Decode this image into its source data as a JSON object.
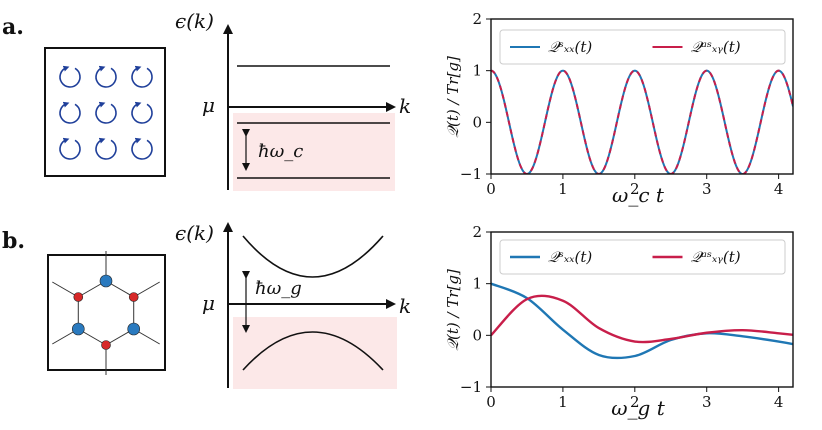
{
  "panels": [
    {
      "label": "a.",
      "band_axis": {
        "ylabel": "ϵ(k)",
        "xlabel": "k",
        "mu": "μ",
        "gap": "ħω_c"
      },
      "chart_data": {
        "type": "line",
        "ylabel": "𝒬(t) / Tr[g]",
        "xlabel": "ω_c t",
        "xlim": [
          0,
          4.2
        ],
        "ylim": [
          -1,
          2
        ],
        "xticks": [
          "0",
          "1",
          "2",
          "3",
          "4"
        ],
        "yticks": [
          "−1",
          "0",
          "1",
          "2"
        ],
        "legend": "top",
        "series": [
          {
            "name": "𝒬ˢₓₓ(t)",
            "color": "#1f77b4",
            "style": "solid",
            "function": "cos(2πx)",
            "x": [
              0,
              0.5,
              1,
              1.5,
              2,
              2.5,
              3,
              3.5,
              4
            ],
            "values": [
              1,
              -1,
              1,
              -1,
              1,
              -1,
              1,
              -1,
              1
            ]
          },
          {
            "name": "𝒬ᵃˢₓᵧ(t)",
            "color": "#c81e4a",
            "style": "dashed",
            "function": "cos(2πx)",
            "x": [
              0,
              0.5,
              1,
              1.5,
              2,
              2.5,
              3,
              3.5,
              4
            ],
            "values": [
              1,
              -1,
              1,
              -1,
              1,
              -1,
              1,
              -1,
              1
            ]
          }
        ]
      }
    },
    {
      "label": "b.",
      "band_axis": {
        "ylabel": "ϵ(k)",
        "xlabel": "k",
        "mu": "μ",
        "gap": "ħω_g"
      },
      "chart_data": {
        "type": "line",
        "ylabel": "𝒬(t) / Tr[g]",
        "xlabel": "ω_g t",
        "xlim": [
          0,
          4.2
        ],
        "ylim": [
          -1,
          2
        ],
        "xticks": [
          "0",
          "1",
          "2",
          "3",
          "4"
        ],
        "yticks": [
          "−1",
          "0",
          "1",
          "2"
        ],
        "legend": "top",
        "series": [
          {
            "name": "𝒬ˢₓₓ(t)",
            "color": "#1f77b4",
            "style": "solid",
            "x": [
              0,
              0.5,
              1,
              1.5,
              2,
              2.5,
              3,
              3.5,
              4,
              4.2
            ],
            "values": [
              1,
              0.72,
              0.11,
              -0.38,
              -0.4,
              -0.09,
              0.04,
              -0.02,
              -0.12,
              -0.17
            ]
          },
          {
            "name": "𝒬ᵃˢₓᵧ(t)",
            "color": "#c81e4a",
            "style": "solid",
            "x": [
              0,
              0.5,
              1,
              1.5,
              2,
              2.5,
              3,
              3.5,
              4,
              4.2
            ],
            "values": [
              0,
              0.7,
              0.67,
              0.14,
              -0.12,
              -0.07,
              0.05,
              0.1,
              0.04,
              0.01
            ]
          }
        ]
      }
    }
  ],
  "colors": {
    "blue": "#1f77b4",
    "red": "#c81e4a",
    "shade": "#fce8e8",
    "vortex": "#1f3f9a",
    "site_blue": "#2a7abf",
    "site_red": "#d62828"
  }
}
